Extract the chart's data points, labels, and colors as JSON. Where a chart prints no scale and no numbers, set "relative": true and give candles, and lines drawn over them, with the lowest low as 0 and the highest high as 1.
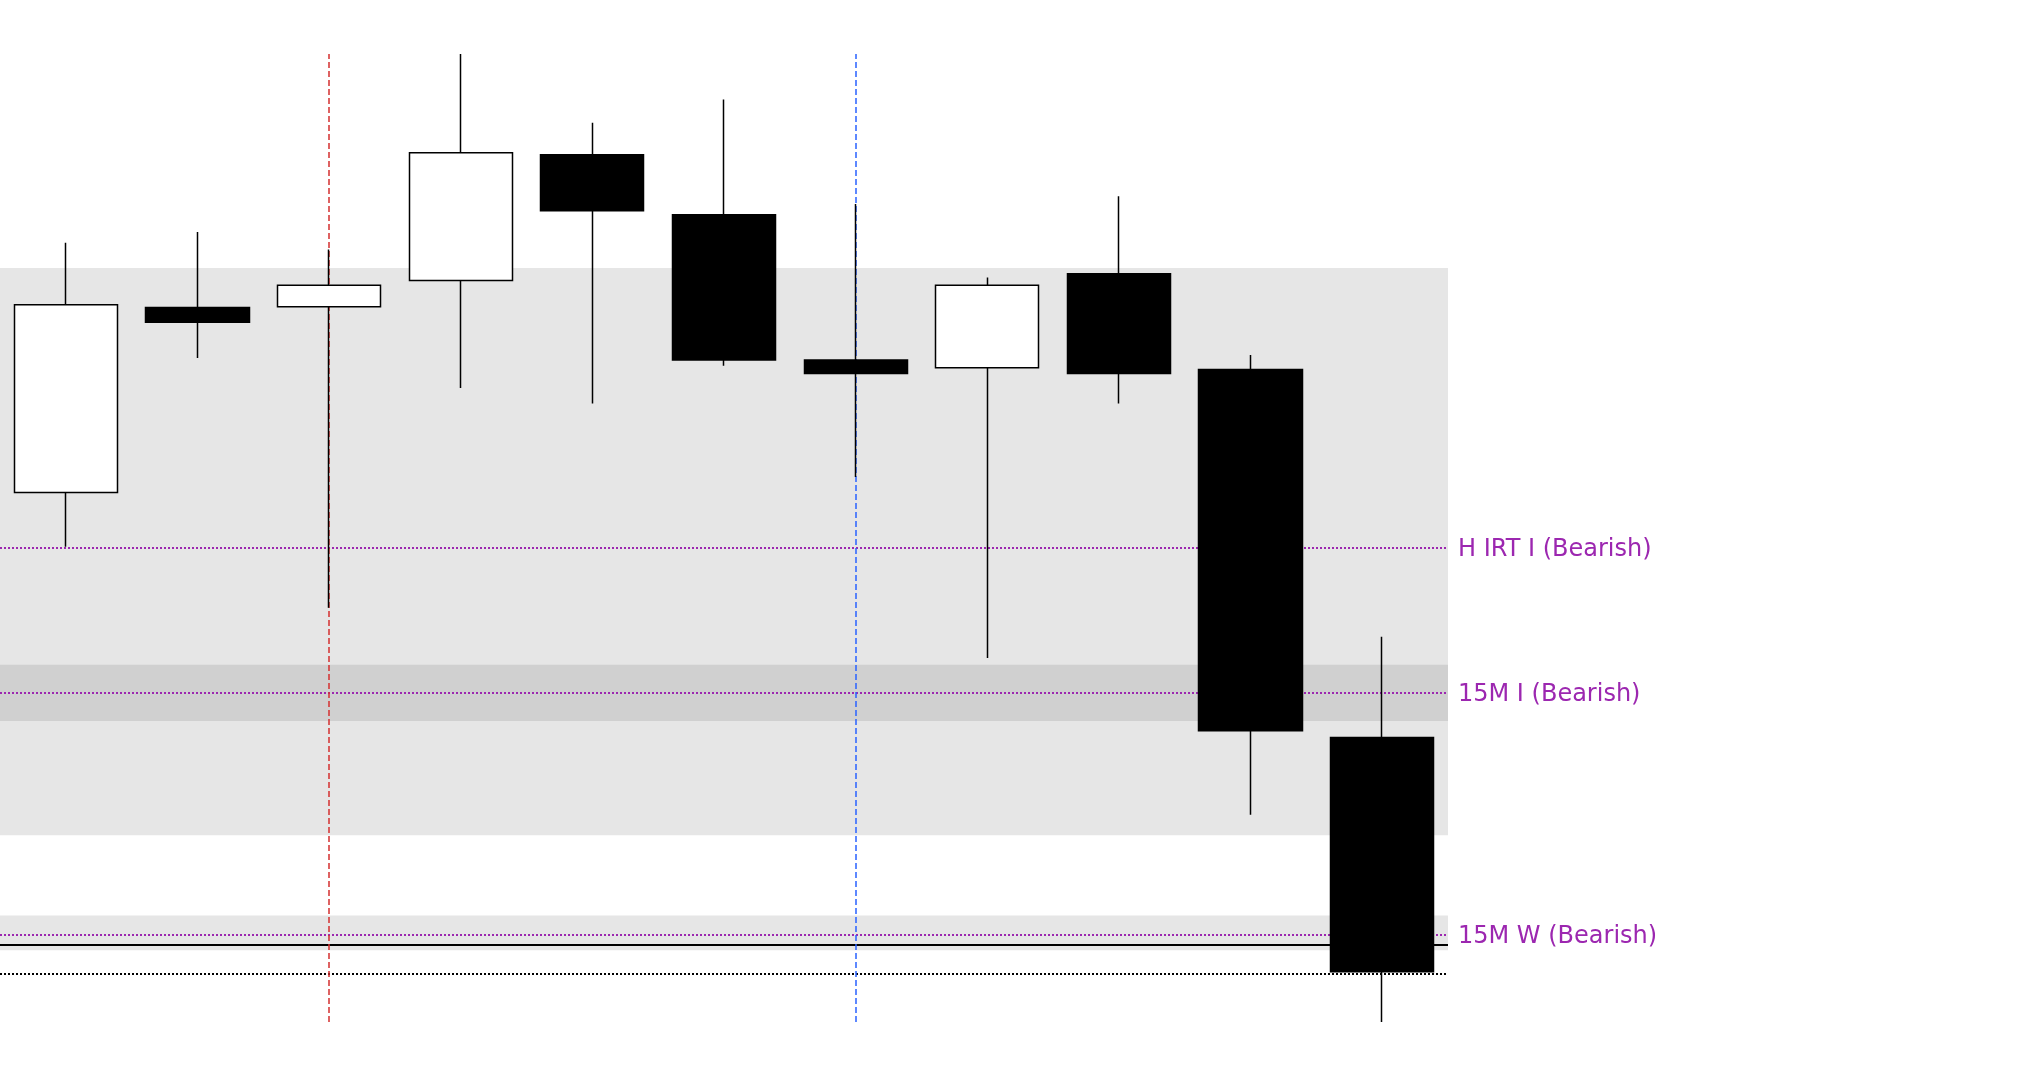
{
  "chart_data": {
    "type": "candlestick",
    "relative": true,
    "tick_labels": false,
    "grid": false,
    "categories": [
      null,
      null,
      null,
      null,
      null,
      null,
      null,
      null,
      null,
      null,
      null
    ],
    "ohlc": [
      [
        0.547,
        0.805,
        0.491,
        0.741
      ],
      [
        0.738,
        0.816,
        0.686,
        0.723
      ],
      [
        0.739,
        0.798,
        0.428,
        0.761
      ],
      [
        0.766,
        1.0,
        0.655,
        0.898
      ],
      [
        0.896,
        0.929,
        0.639,
        0.838
      ],
      [
        0.834,
        0.953,
        0.678,
        0.684
      ],
      [
        0.684,
        0.845,
        0.563,
        0.67
      ],
      [
        0.676,
        0.769,
        0.376,
        0.761
      ],
      [
        0.773,
        0.853,
        0.639,
        0.67
      ],
      [
        0.674,
        0.689,
        0.214,
        0.301
      ],
      [
        0.294,
        0.398,
        0.0,
        0.052
      ]
    ],
    "ref_lines": [
      {
        "axis": "y",
        "value": 0.487,
        "label": "H IRT I (Bearish)",
        "color": "#9c27b0",
        "line_style": "dotted"
      },
      {
        "axis": "y",
        "value": 0.341,
        "label": "15M I (Bearish)",
        "color": "#9c27b0",
        "line_style": "dotted"
      },
      {
        "axis": "y",
        "value": 0.09,
        "label": "15M W (Bearish)",
        "color": "#9c27b0",
        "line_style": "dotted"
      },
      {
        "axis": "y",
        "value": 0.076,
        "label": null,
        "color": "#000000",
        "line_style": "solid"
      },
      {
        "axis": "y",
        "value": 0.053,
        "label": null,
        "color": "#000000",
        "line_style": "dotted"
      }
    ],
    "bands": [
      {
        "axis": "y",
        "from": 0.193,
        "to": 0.779,
        "label": null,
        "color": "#e6e6e6"
      },
      {
        "axis": "y",
        "from": 0.311,
        "to": 0.369,
        "label": null,
        "color": "#d0d0d0"
      },
      {
        "axis": "y",
        "from": 0.074,
        "to": 0.11,
        "label": null,
        "color": "#e6e6e6"
      }
    ]
  }
}
